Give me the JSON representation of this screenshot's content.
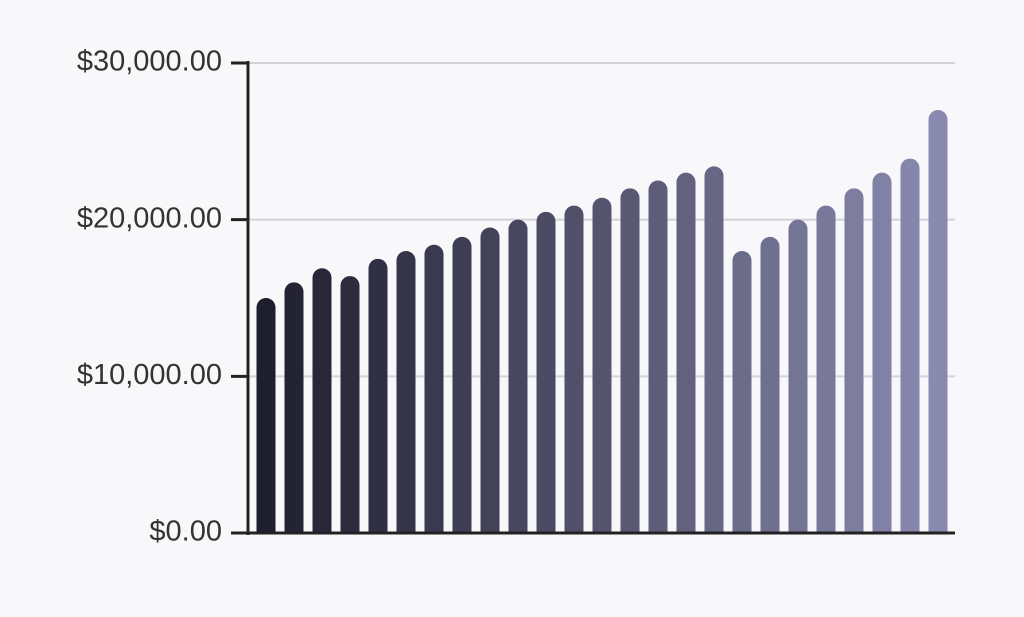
{
  "chart_data": {
    "type": "bar",
    "values": [
      15000,
      16000,
      16900,
      16400,
      17500,
      18000,
      18400,
      18900,
      19500,
      20000,
      20500,
      20900,
      21400,
      22000,
      22500,
      23000,
      23400,
      18000,
      18900,
      20000,
      20900,
      22000,
      23000,
      23900,
      27000
    ],
    "colors": [
      "#1e1e2e",
      "#232333",
      "#272739",
      "#2c2c3e",
      "#303044",
      "#353549",
      "#39394f",
      "#3e3e54",
      "#424259",
      "#47475f",
      "#4b4b64",
      "#50506a",
      "#54546f",
      "#595974",
      "#5d5d7a",
      "#62627f",
      "#666685",
      "#6b6b8a",
      "#6f6f90",
      "#747495",
      "#78789a",
      "#7d7da0",
      "#8181a5",
      "#8686ab",
      "#8a8ab0"
    ],
    "ylim": [
      0,
      30000
    ],
    "yticks": [
      {
        "value": 0,
        "label": "$0.00"
      },
      {
        "value": 10000,
        "label": "$10,000.00"
      },
      {
        "value": 20000,
        "label": "$20,000.00"
      },
      {
        "value": 30000,
        "label": "$30,000.00"
      }
    ],
    "grid": true
  }
}
